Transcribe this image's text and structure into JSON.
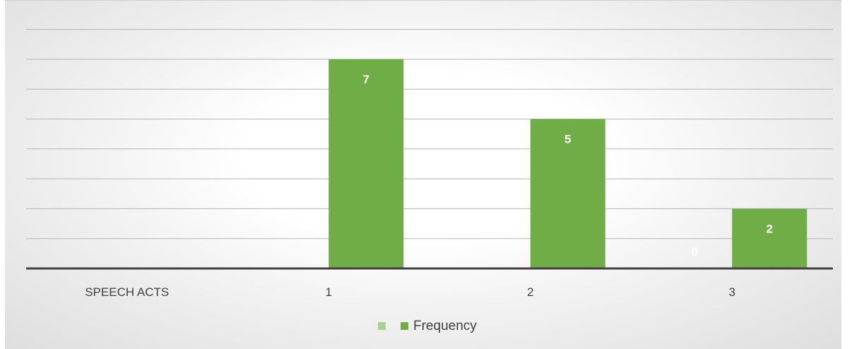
{
  "chart_data": {
    "type": "bar",
    "categories": [
      "SPEECH ACTS",
      "1",
      "2",
      "3"
    ],
    "series": [
      {
        "name": "",
        "values": [
          null,
          null,
          null,
          0
        ],
        "color": "#a9d18e"
      },
      {
        "name": "Frequency",
        "values": [
          null,
          7,
          5,
          2
        ],
        "color": "#70ad47"
      }
    ],
    "ylim": [
      0,
      8.5
    ],
    "grid": true,
    "legend_position": "bottom"
  }
}
